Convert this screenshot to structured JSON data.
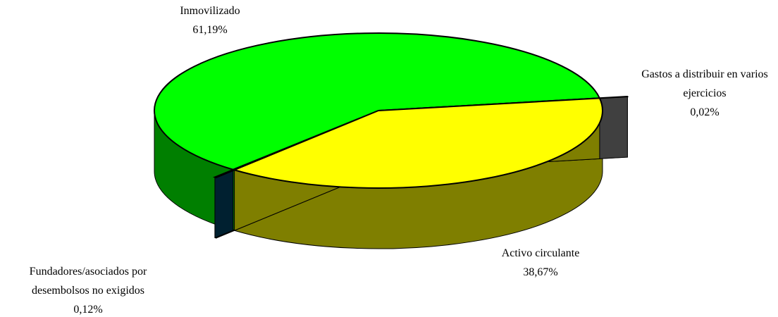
{
  "chart_data": {
    "type": "pie3d",
    "categories": [
      "Fundadores/asociados por desembolsos no exigidos",
      "Inmovilizado",
      "Gastos a distribuir en varios ejercicios",
      "Activo circulante"
    ],
    "values": [
      0.12,
      61.19,
      0.02,
      38.67
    ],
    "value_labels": [
      "0,12%",
      "61,19%",
      "0,02%",
      "38,67%"
    ],
    "colors": [
      "#004060",
      "#00ff00",
      "#808080",
      "#ffff00"
    ]
  }
}
